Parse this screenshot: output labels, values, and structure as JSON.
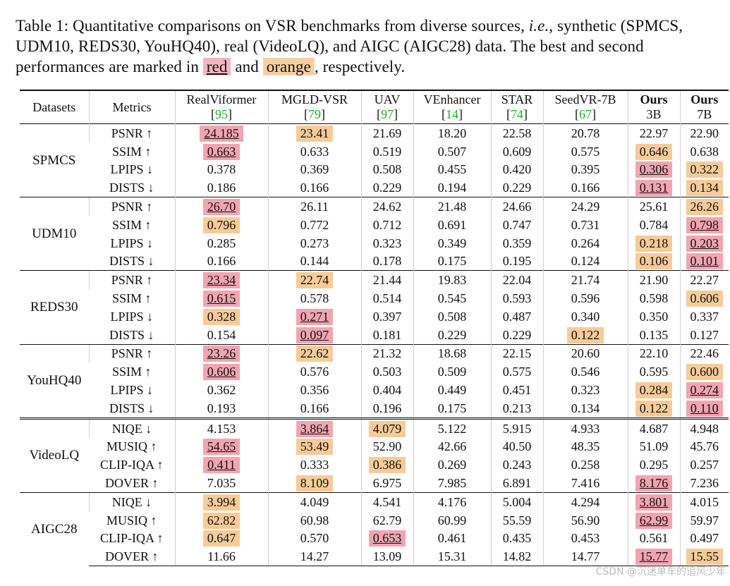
{
  "caption": {
    "prefix": "Table 1:  Quantitative comparisons on VSR benchmarks from diverse sources, ",
    "ie": "i.e.",
    "mid": ", synthetic (SPMCS, UDM10, REDS30, YouHQ40), real (VideoLQ), and AIGC (AIGC28) data.  The best and second performances are marked in ",
    "red": "red",
    "and": " and ",
    "orange": "orange",
    "suffix": ", respectively."
  },
  "columns": [
    {
      "name": "Datasets"
    },
    {
      "name": "Metrics"
    },
    {
      "name": "RealViformer",
      "cite": "95"
    },
    {
      "name": "MGLD-VSR",
      "cite": "79"
    },
    {
      "name": "UAV",
      "cite": "97"
    },
    {
      "name": "VEnhancer",
      "cite": "14"
    },
    {
      "name": "STAR",
      "cite": "74"
    },
    {
      "name": "SeedVR-7B",
      "cite": "67"
    },
    {
      "name": "Ours",
      "sub": "3B"
    },
    {
      "name": "Ours",
      "sub": "7B"
    }
  ],
  "groups": [
    {
      "dataset": "SPMCS",
      "rows": [
        {
          "metric": "PSNR ↑",
          "values": [
            "24.185",
            "23.41",
            "21.69",
            "18.20",
            "22.58",
            "20.78",
            "22.97",
            "22.90"
          ],
          "marks": [
            "r",
            "o",
            "",
            "",
            "",
            "",
            "",
            ""
          ]
        },
        {
          "metric": "SSIM ↑",
          "values": [
            "0.663",
            "0.633",
            "0.519",
            "0.507",
            "0.609",
            "0.575",
            "0.646",
            "0.638"
          ],
          "marks": [
            "r",
            "",
            "",
            "",
            "",
            "",
            "o",
            ""
          ]
        },
        {
          "metric": "LPIPS ↓",
          "values": [
            "0.378",
            "0.369",
            "0.508",
            "0.455",
            "0.420",
            "0.395",
            "0.306",
            "0.322"
          ],
          "marks": [
            "",
            "",
            "",
            "",
            "",
            "",
            "r",
            "o"
          ]
        },
        {
          "metric": "DISTS ↓",
          "values": [
            "0.186",
            "0.166",
            "0.229",
            "0.194",
            "0.229",
            "0.166",
            "0.131",
            "0.134"
          ],
          "marks": [
            "",
            "",
            "",
            "",
            "",
            "",
            "r",
            "o"
          ]
        }
      ]
    },
    {
      "dataset": "UDM10",
      "rows": [
        {
          "metric": "PSNR ↑",
          "values": [
            "26.70",
            "26.11",
            "24.62",
            "21.48",
            "24.66",
            "24.29",
            "25.61",
            "26.26"
          ],
          "marks": [
            "r",
            "",
            "",
            "",
            "",
            "",
            "",
            "o"
          ]
        },
        {
          "metric": "SSIM ↑",
          "values": [
            "0.796",
            "0.772",
            "0.712",
            "0.691",
            "0.747",
            "0.731",
            "0.784",
            "0.798"
          ],
          "marks": [
            "o",
            "",
            "",
            "",
            "",
            "",
            "",
            "r"
          ]
        },
        {
          "metric": "LPIPS ↓",
          "values": [
            "0.285",
            "0.273",
            "0.323",
            "0.349",
            "0.359",
            "0.264",
            "0.218",
            "0.203"
          ],
          "marks": [
            "",
            "",
            "",
            "",
            "",
            "",
            "o",
            "r"
          ]
        },
        {
          "metric": "DISTS ↓",
          "values": [
            "0.166",
            "0.144",
            "0.178",
            "0.175",
            "0.195",
            "0.124",
            "0.106",
            "0.101"
          ],
          "marks": [
            "",
            "",
            "",
            "",
            "",
            "",
            "o",
            "r"
          ]
        }
      ]
    },
    {
      "dataset": "REDS30",
      "rows": [
        {
          "metric": "PSNR ↑",
          "values": [
            "23.34",
            "22.74",
            "21.44",
            "19.83",
            "22.04",
            "21.74",
            "21.90",
            "22.27"
          ],
          "marks": [
            "r",
            "o",
            "",
            "",
            "",
            "",
            "",
            ""
          ]
        },
        {
          "metric": "SSIM ↑",
          "values": [
            "0.615",
            "0.578",
            "0.514",
            "0.545",
            "0.593",
            "0.596",
            "0.598",
            "0.606"
          ],
          "marks": [
            "r",
            "",
            "",
            "",
            "",
            "",
            "",
            "o"
          ]
        },
        {
          "metric": "LPIPS ↓",
          "values": [
            "0.328",
            "0.271",
            "0.397",
            "0.508",
            "0.487",
            "0.340",
            "0.350",
            "0.337"
          ],
          "marks": [
            "o",
            "r",
            "",
            "",
            "",
            "",
            "",
            ""
          ]
        },
        {
          "metric": "DISTS ↓",
          "values": [
            "0.154",
            "0.097",
            "0.181",
            "0.229",
            "0.229",
            "0.122",
            "0.135",
            "0.127"
          ],
          "marks": [
            "",
            "r",
            "",
            "",
            "",
            "o",
            "",
            ""
          ]
        }
      ]
    },
    {
      "dataset": "YouHQ40",
      "rows": [
        {
          "metric": "PSNR ↑",
          "values": [
            "23.26",
            "22.62",
            "21.32",
            "18.68",
            "22.15",
            "20.60",
            "22.10",
            "22.46"
          ],
          "marks": [
            "r",
            "o",
            "",
            "",
            "",
            "",
            "",
            ""
          ]
        },
        {
          "metric": "SSIM ↑",
          "values": [
            "0.606",
            "0.576",
            "0.503",
            "0.509",
            "0.575",
            "0.546",
            "0.595",
            "0.600"
          ],
          "marks": [
            "r",
            "",
            "",
            "",
            "",
            "",
            "",
            "o"
          ]
        },
        {
          "metric": "LPIPS ↓",
          "values": [
            "0.362",
            "0.356",
            "0.404",
            "0.449",
            "0.451",
            "0.323",
            "0.284",
            "0.274"
          ],
          "marks": [
            "",
            "",
            "",
            "",
            "",
            "",
            "o",
            "r"
          ]
        },
        {
          "metric": "DISTS ↓",
          "values": [
            "0.193",
            "0.166",
            "0.196",
            "0.175",
            "0.213",
            "0.134",
            "0.122",
            "0.110"
          ],
          "marks": [
            "",
            "",
            "",
            "",
            "",
            "",
            "o",
            "r"
          ]
        }
      ]
    },
    {
      "dataset": "VideoLQ",
      "rows": [
        {
          "metric": "NIQE ↓",
          "values": [
            "4.153",
            "3.864",
            "4.079",
            "5.122",
            "5.915",
            "4.933",
            "4.687",
            "4.948"
          ],
          "marks": [
            "",
            "r",
            "o",
            "",
            "",
            "",
            "",
            ""
          ]
        },
        {
          "metric": "MUSIQ ↑",
          "values": [
            "54.65",
            "53.49",
            "52.90",
            "42.66",
            "40.50",
            "48.35",
            "51.09",
            "45.76"
          ],
          "marks": [
            "r",
            "o",
            "",
            "",
            "",
            "",
            "",
            ""
          ]
        },
        {
          "metric": "CLIP-IQA ↑",
          "values": [
            "0.411",
            "0.333",
            "0.386",
            "0.269",
            "0.243",
            "0.258",
            "0.295",
            "0.257"
          ],
          "marks": [
            "r",
            "",
            "o",
            "",
            "",
            "",
            "",
            ""
          ]
        },
        {
          "metric": "DOVER ↑",
          "values": [
            "7.035",
            "8.109",
            "6.975",
            "7.985",
            "6.891",
            "7.416",
            "8.176",
            "7.236"
          ],
          "marks": [
            "",
            "o",
            "",
            "",
            "",
            "",
            "r",
            ""
          ]
        }
      ]
    },
    {
      "dataset": "AIGC28",
      "rows": [
        {
          "metric": "NIQE ↓",
          "values": [
            "3.994",
            "4.049",
            "4.541",
            "4.176",
            "5.004",
            "4.294",
            "3.801",
            "4.015"
          ],
          "marks": [
            "o",
            "",
            "",
            "",
            "",
            "",
            "r",
            ""
          ]
        },
        {
          "metric": "MUSIQ ↑",
          "values": [
            "62.82",
            "60.98",
            "62.79",
            "60.99",
            "55.59",
            "56.90",
            "62.99",
            "59.97"
          ],
          "marks": [
            "o",
            "",
            "",
            "",
            "",
            "",
            "r",
            ""
          ]
        },
        {
          "metric": "CLIP-IQA ↑",
          "values": [
            "0.647",
            "0.570",
            "0.653",
            "0.461",
            "0.435",
            "0.453",
            "0.561",
            "0.497"
          ],
          "marks": [
            "o",
            "",
            "r",
            "",
            "",
            "",
            "",
            ""
          ]
        },
        {
          "metric": "DOVER ↑",
          "values": [
            "11.66",
            "14.27",
            "13.09",
            "15.31",
            "14.82",
            "14.77",
            "15.77",
            "15.55"
          ],
          "marks": [
            "",
            "",
            "",
            "",
            "",
            "",
            "r",
            "o"
          ]
        }
      ]
    }
  ],
  "watermark": "CSDN @沉迷单车的追风少年"
}
